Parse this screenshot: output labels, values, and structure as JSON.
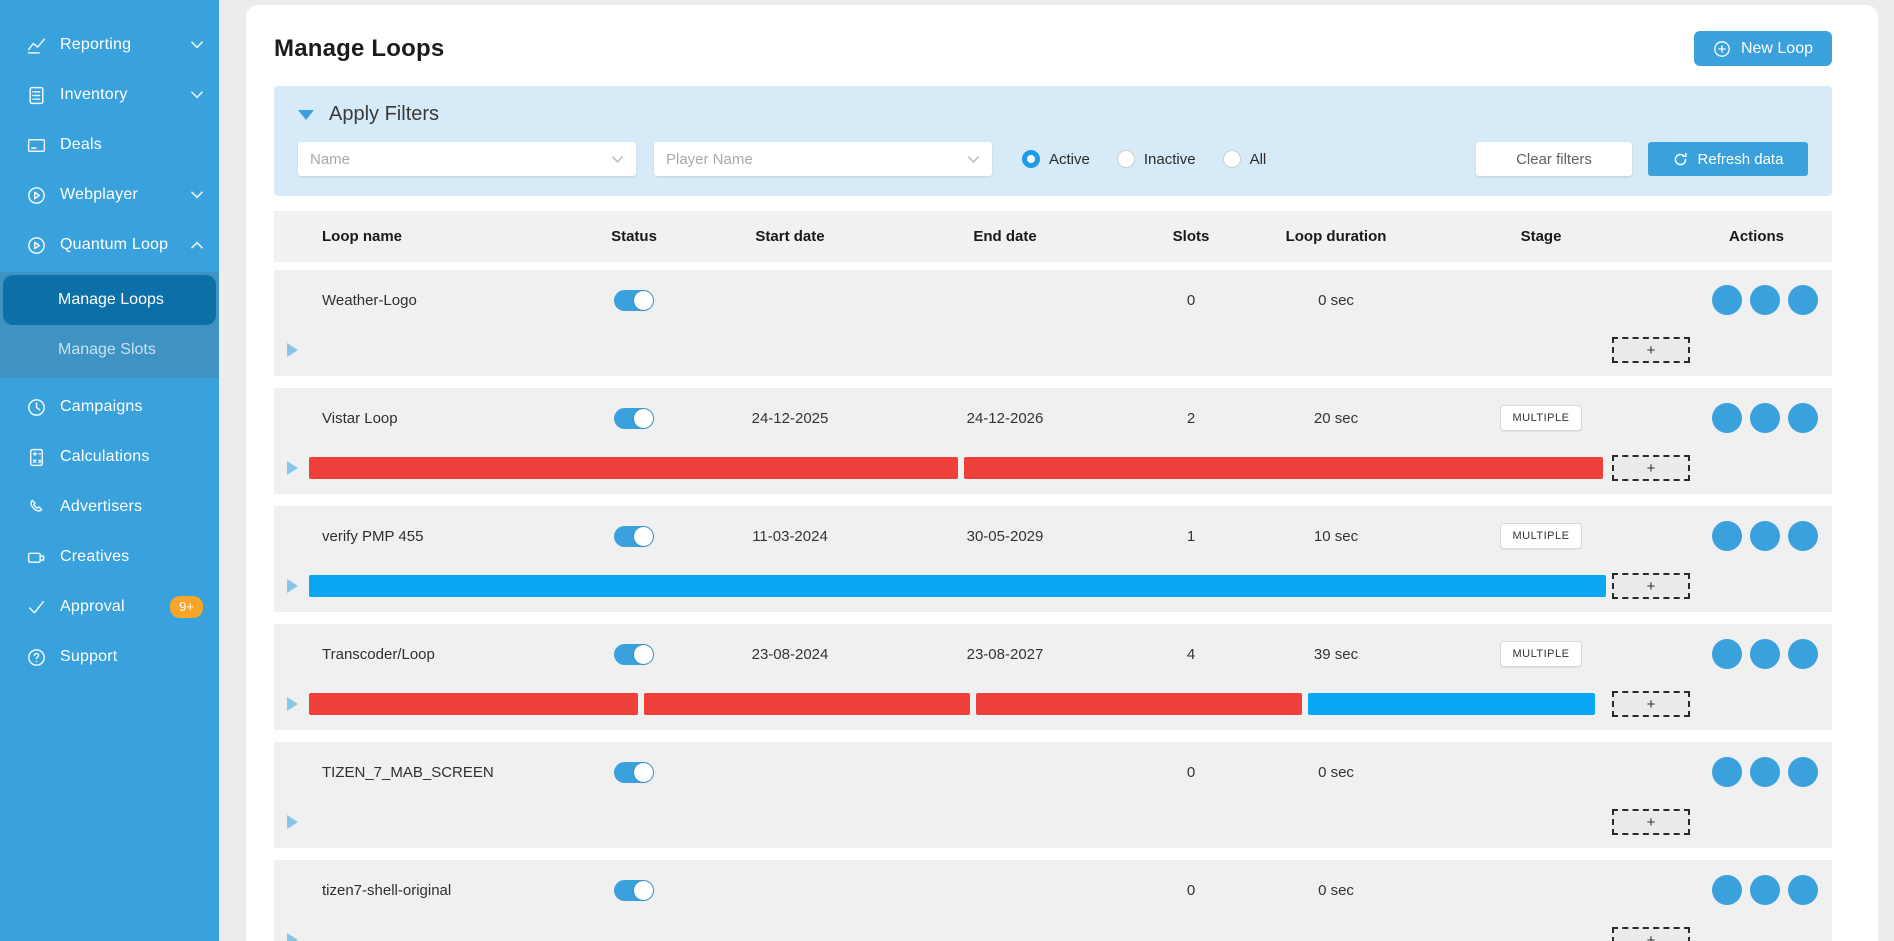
{
  "colors": {
    "accent": "#3aa1dc",
    "sidebar": "#39a2dd",
    "sidebar_submenu": "#3e93c3",
    "sidebar_active": "#0c6fa8",
    "filter_panel": "#d6eaf7",
    "bar_red": "#ef3f3a",
    "bar_blue": "#0aa7f5",
    "badge_orange": "#f8a62a"
  },
  "sidebar": {
    "items_top": [
      {
        "label": "Reporting",
        "icon": "chart",
        "chevron": "down"
      },
      {
        "label": "Inventory",
        "icon": "inventory",
        "chevron": "down"
      },
      {
        "label": "Deals",
        "icon": "deals"
      },
      {
        "label": "Webplayer",
        "icon": "play-circle",
        "chevron": "down"
      },
      {
        "label": "Quantum Loop",
        "icon": "play-circle",
        "chevron": "up"
      }
    ],
    "submenu": [
      {
        "label": "Manage Loops",
        "active": true
      },
      {
        "label": "Manage Slots",
        "active": false
      }
    ],
    "items_bottom": [
      {
        "label": "Campaigns",
        "icon": "clock"
      },
      {
        "label": "Calculations",
        "icon": "calculator"
      },
      {
        "label": "Advertisers",
        "icon": "phone"
      },
      {
        "label": "Creatives",
        "icon": "video"
      },
      {
        "label": "Approval",
        "icon": "check",
        "badge": "9+"
      },
      {
        "label": "Support",
        "icon": "help"
      }
    ]
  },
  "header": {
    "title": "Manage Loops",
    "new_loop_label": "New Loop"
  },
  "filters": {
    "title": "Apply Filters",
    "name_placeholder": "Name",
    "player_placeholder": "Player Name",
    "radios": [
      {
        "label": "Active",
        "selected": true
      },
      {
        "label": "Inactive",
        "selected": false
      },
      {
        "label": "All",
        "selected": false
      }
    ],
    "clear_label": "Clear filters",
    "refresh_label": "Refresh data"
  },
  "table": {
    "columns": [
      "Loop name",
      "Status",
      "Start date",
      "End date",
      "Slots",
      "Loop duration",
      "Stage",
      "Actions"
    ],
    "add_slot_label": "+",
    "rows": [
      {
        "name": "Weather-Logo",
        "active": true,
        "start": "",
        "end": "",
        "slots": "0",
        "duration": "0 sec",
        "stage": "",
        "segments": []
      },
      {
        "name": "Vistar Loop",
        "active": true,
        "start": "24-12-2025",
        "end": "24-12-2026",
        "slots": "2",
        "duration": "20 sec",
        "stage": "MULTIPLE",
        "segments": [
          {
            "color": "red",
            "pct": 50.0
          },
          {
            "color": "red",
            "pct": 49.3
          }
        ]
      },
      {
        "name": "verify PMP 455",
        "active": true,
        "start": "11-03-2024",
        "end": "30-05-2029",
        "slots": "1",
        "duration": "10 sec",
        "stage": "MULTIPLE",
        "segments": [
          {
            "color": "blue",
            "pct": 100
          }
        ]
      },
      {
        "name": "Transcoder/Loop",
        "active": true,
        "start": "23-08-2024",
        "end": "23-08-2027",
        "slots": "4",
        "duration": "39 sec",
        "stage": "MULTIPLE",
        "segments": [
          {
            "color": "red",
            "pct": 25.4
          },
          {
            "color": "red",
            "pct": 25.1
          },
          {
            "color": "red",
            "pct": 25.1
          },
          {
            "color": "blue",
            "pct": 22.2
          }
        ]
      },
      {
        "name": "TIZEN_7_MAB_SCREEN",
        "active": true,
        "start": "",
        "end": "",
        "slots": "0",
        "duration": "0 sec",
        "stage": "",
        "segments": []
      },
      {
        "name": "tizen7-shell-original",
        "active": true,
        "start": "",
        "end": "",
        "slots": "0",
        "duration": "0 sec",
        "stage": "",
        "segments": []
      }
    ]
  }
}
